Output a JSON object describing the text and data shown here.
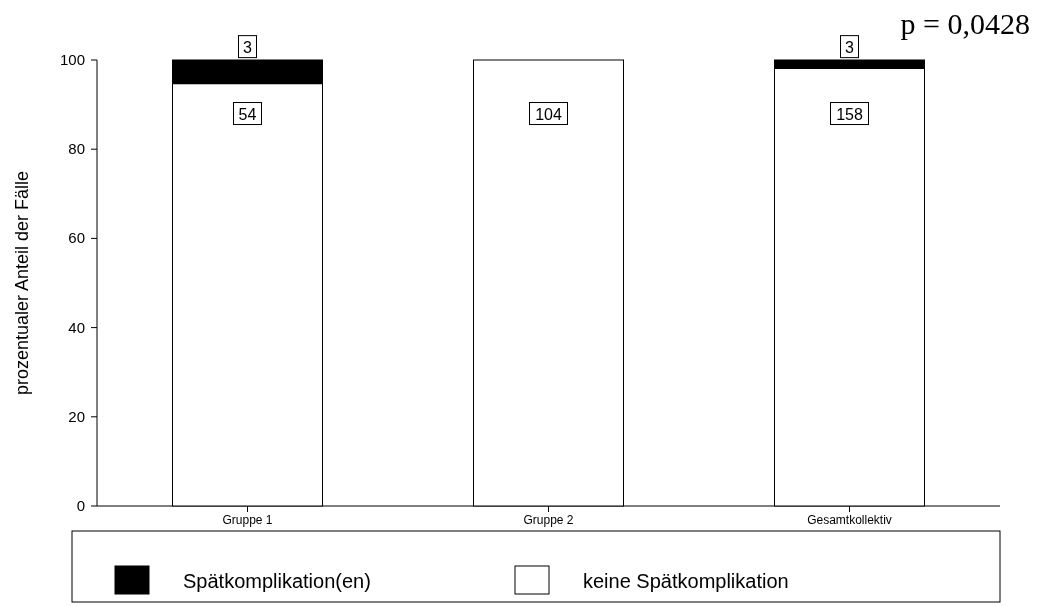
{
  "chart_data": {
    "type": "bar",
    "stacked": true,
    "ylabel": "prozentualer Anteil der Fälle",
    "categories": [
      "Gruppe 1",
      "Gruppe 2",
      "Gesamtkollektiv"
    ],
    "series": [
      {
        "name": "keine Spätkomplikation",
        "color": "#ffffff",
        "values": [
          94.7,
          100,
          98.1
        ]
      },
      {
        "name": "Spätkomplikation(en)",
        "color": "#000000",
        "values": [
          5.3,
          0,
          1.9
        ]
      }
    ],
    "ylim": [
      0,
      100
    ],
    "yticks": [
      0,
      20,
      40,
      60,
      80,
      100
    ],
    "grid": false,
    "legend": "bottom",
    "annotations": [
      "p = 0,0428",
      {
        "text": "3",
        "x": "Gruppe 1",
        "y": 103
      },
      {
        "text": "54",
        "x": "Gruppe 1",
        "y": 88
      },
      {
        "text": "104",
        "x": "Gruppe 2",
        "y": 88
      },
      {
        "text": "3",
        "x": "Gesamtkollektiv",
        "y": 103
      },
      {
        "text": "158",
        "x": "Gesamtkollektiv",
        "y": 88
      }
    ]
  }
}
